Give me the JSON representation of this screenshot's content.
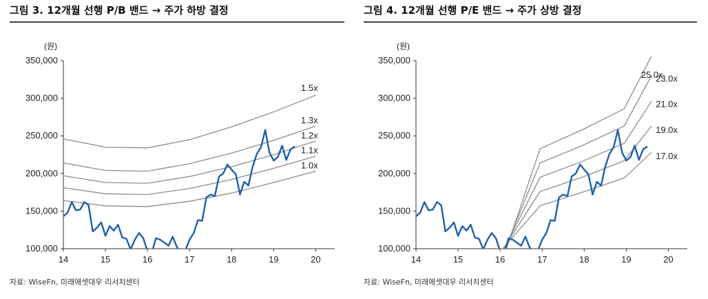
{
  "charts": [
    {
      "title": "그림 3. 12개월 선행 P/B 밴드 → 주가 하방 결정",
      "source": "자료: WiseFn, 미래에셋대우 리서치센터",
      "chart_data": {
        "type": "line",
        "unit_label": "(원)",
        "ylim": [
          100000,
          350000
        ],
        "yticks": [
          100000,
          150000,
          200000,
          250000,
          300000,
          350000
        ],
        "ytick_labels": [
          "100,000",
          "150,000",
          "200,000",
          "250,000",
          "300,000",
          "350,000"
        ],
        "xlim": [
          14,
          20
        ],
        "xticks": [
          14,
          15,
          16,
          17,
          18,
          19,
          20
        ],
        "xtick_labels": [
          "14",
          "15",
          "16",
          "17",
          "18",
          "19",
          "20"
        ],
        "grid": false,
        "price_color": "#1f5fa8",
        "band_color": "#8c8c8c",
        "bands": [
          {
            "name": "1.5x",
            "x": [
              14,
              15,
              16,
              17,
              18,
              19,
              20
            ],
            "values": [
              246000,
              235000,
              234000,
              245000,
              262000,
              282000,
              304000
            ]
          },
          {
            "name": "1.3x",
            "x": [
              14,
              15,
              16,
              17,
              18,
              19,
              20
            ],
            "values": [
              214000,
              204000,
              203000,
              213000,
              227000,
              244000,
              263000
            ]
          },
          {
            "name": "1.2x",
            "x": [
              14,
              15,
              16,
              17,
              18,
              19,
              20
            ],
            "values": [
              197000,
              188000,
              187000,
              196000,
              209000,
              225000,
              243000
            ]
          },
          {
            "name": "1.1x",
            "x": [
              14,
              15,
              16,
              17,
              18,
              19,
              20
            ],
            "values": [
              181000,
              173000,
              172000,
              180000,
              192000,
              207000,
              223000
            ]
          },
          {
            "name": "1.0x",
            "x": [
              14,
              15,
              16,
              17,
              18,
              19,
              20
            ],
            "values": [
              164000,
              157000,
              156000,
              163000,
              174000,
              188000,
              203000
            ]
          }
        ],
        "price": {
          "x": [
            14.0,
            14.1,
            14.2,
            14.3,
            14.4,
            14.5,
            14.6,
            14.7,
            14.8,
            14.9,
            15.0,
            15.1,
            15.2,
            15.3,
            15.4,
            15.5,
            15.6,
            15.7,
            15.8,
            15.9,
            16.0,
            16.1,
            16.2,
            16.3,
            16.4,
            16.5,
            16.6,
            16.7,
            16.8,
            16.9,
            17.0,
            17.1,
            17.2,
            17.3,
            17.4,
            17.5,
            17.6,
            17.7,
            17.8,
            17.9,
            18.0,
            18.1,
            18.2,
            18.3,
            18.4,
            18.5,
            18.6,
            18.7,
            18.8,
            18.9,
            19.0,
            19.1,
            19.2,
            19.3,
            19.4,
            19.5
          ],
          "values": [
            143000,
            148000,
            162000,
            151000,
            152000,
            162000,
            158000,
            123000,
            128000,
            135000,
            117000,
            130000,
            124000,
            132000,
            115000,
            113000,
            99000,
            112000,
            121000,
            114000,
            97000,
            94000,
            114000,
            112000,
            108000,
            104000,
            116000,
            102000,
            95000,
            98000,
            112000,
            121000,
            138000,
            137000,
            168000,
            172000,
            170000,
            196000,
            200000,
            212000,
            205000,
            199000,
            172000,
            189000,
            184000,
            209000,
            226000,
            235000,
            258000,
            228000,
            217000,
            222000,
            237000,
            218000,
            232000,
            236000
          ]
        }
      }
    },
    {
      "title": "그림 4. 12개월 선행 P/E 밴드 → 주가 상방 결정",
      "source": "자료: WiseFn, 미래에셋대우 리서치센터",
      "chart_data": {
        "type": "line",
        "unit_label": "(원)",
        "ylim": [
          100000,
          350000
        ],
        "yticks": [
          100000,
          150000,
          200000,
          250000,
          300000,
          350000
        ],
        "ytick_labels": [
          "100,000",
          "150,000",
          "200,000",
          "250,000",
          "300,000",
          "350,000"
        ],
        "xlim": [
          14,
          20
        ],
        "xticks": [
          14,
          15,
          16,
          17,
          18,
          19,
          20
        ],
        "xtick_labels": [
          "14",
          "15",
          "16",
          "17",
          "18",
          "19",
          "20"
        ],
        "grid": false,
        "price_color": "#1f5fa8",
        "band_color": "#8c8c8c",
        "bands": [
          {
            "name": "25.0x",
            "x": [
              16.15,
              16.95,
              17.95,
              18.95,
              19.6
            ],
            "values": [
              100000,
              233000,
              258000,
              286000,
              356000
            ]
          },
          {
            "name": "23.0x",
            "x": [
              16.12,
              16.95,
              17.95,
              18.95,
              19.6
            ],
            "values": [
              100000,
              214000,
              237000,
              263000,
              330000
            ]
          },
          {
            "name": "21.0x",
            "x": [
              16.1,
              16.95,
              17.95,
              18.95,
              19.6
            ],
            "values": [
              100000,
              195000,
              216000,
              240000,
              296000
            ]
          },
          {
            "name": "19.0x",
            "x": [
              16.08,
              16.95,
              17.95,
              18.95,
              19.6
            ],
            "values": [
              100000,
              176000,
              195000,
              217000,
              263000
            ]
          },
          {
            "name": "17.0x",
            "x": [
              16.06,
              16.95,
              17.95,
              18.95,
              19.6
            ],
            "values": [
              100000,
              157000,
              175000,
              194000,
              228000
            ]
          }
        ],
        "band_labels_x": [
          19.35,
          19.7,
          19.7,
          19.7,
          19.7
        ],
        "band_labels_y": [
          327000,
          322000,
          288000,
          254000,
          219000
        ],
        "price": {
          "x": [
            14.0,
            14.1,
            14.2,
            14.3,
            14.4,
            14.5,
            14.6,
            14.7,
            14.8,
            14.9,
            15.0,
            15.1,
            15.2,
            15.3,
            15.4,
            15.5,
            15.6,
            15.7,
            15.8,
            15.9,
            16.0,
            16.1,
            16.2,
            16.3,
            16.4,
            16.5,
            16.6,
            16.7,
            16.8,
            16.9,
            17.0,
            17.1,
            17.2,
            17.3,
            17.4,
            17.5,
            17.6,
            17.7,
            17.8,
            17.9,
            18.0,
            18.1,
            18.2,
            18.3,
            18.4,
            18.5,
            18.6,
            18.7,
            18.8,
            18.9,
            19.0,
            19.1,
            19.2,
            19.3,
            19.4,
            19.5
          ],
          "values": [
            143000,
            148000,
            162000,
            151000,
            152000,
            162000,
            158000,
            123000,
            128000,
            135000,
            117000,
            130000,
            124000,
            132000,
            115000,
            113000,
            99000,
            112000,
            121000,
            114000,
            97000,
            94000,
            114000,
            112000,
            108000,
            104000,
            116000,
            102000,
            95000,
            98000,
            112000,
            121000,
            138000,
            137000,
            168000,
            172000,
            170000,
            196000,
            200000,
            212000,
            205000,
            199000,
            172000,
            189000,
            184000,
            209000,
            226000,
            235000,
            258000,
            228000,
            217000,
            222000,
            237000,
            218000,
            232000,
            236000
          ]
        }
      }
    }
  ]
}
